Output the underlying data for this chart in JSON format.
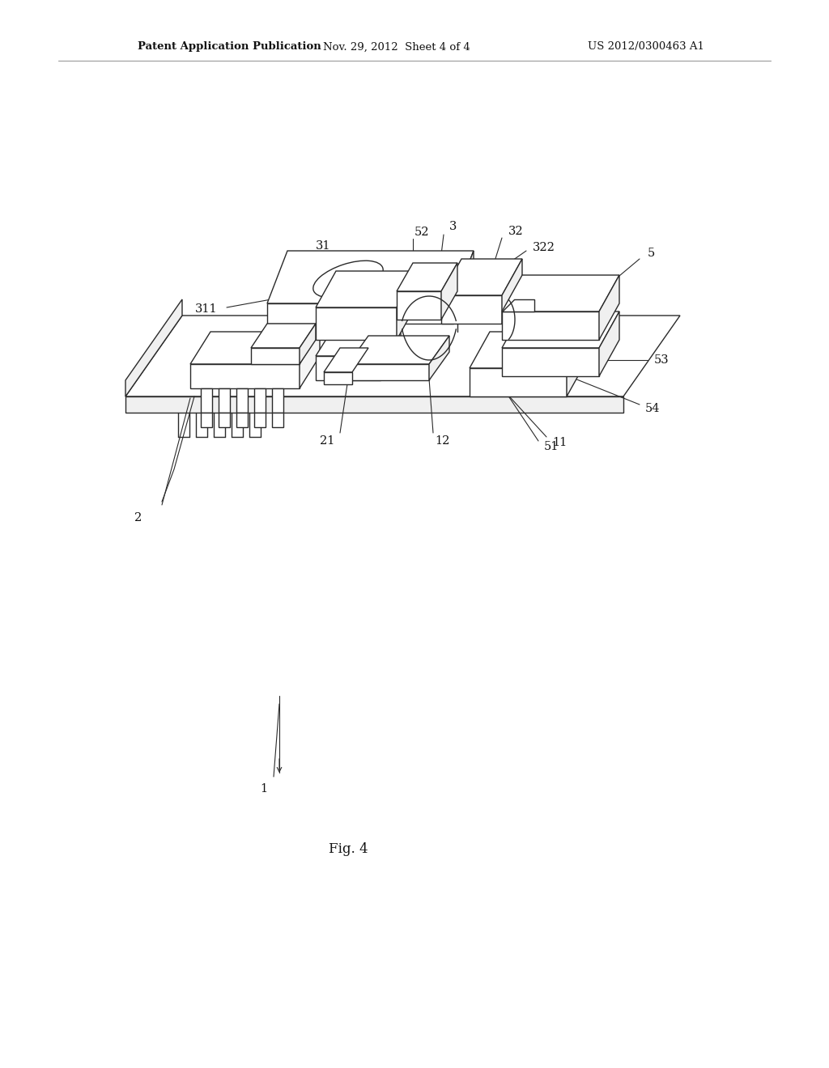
{
  "bg_color": "#ffffff",
  "header_left": "Patent Application Publication",
  "header_center": "Nov. 29, 2012  Sheet 4 of 4",
  "header_right": "US 2012/0300463 A1",
  "caption": "Fig. 4",
  "line_color": "#2a2a2a",
  "lw": 1.0,
  "label_fontsize": 10.5,
  "header_fontsize": 9.5,
  "caption_fontsize": 12
}
